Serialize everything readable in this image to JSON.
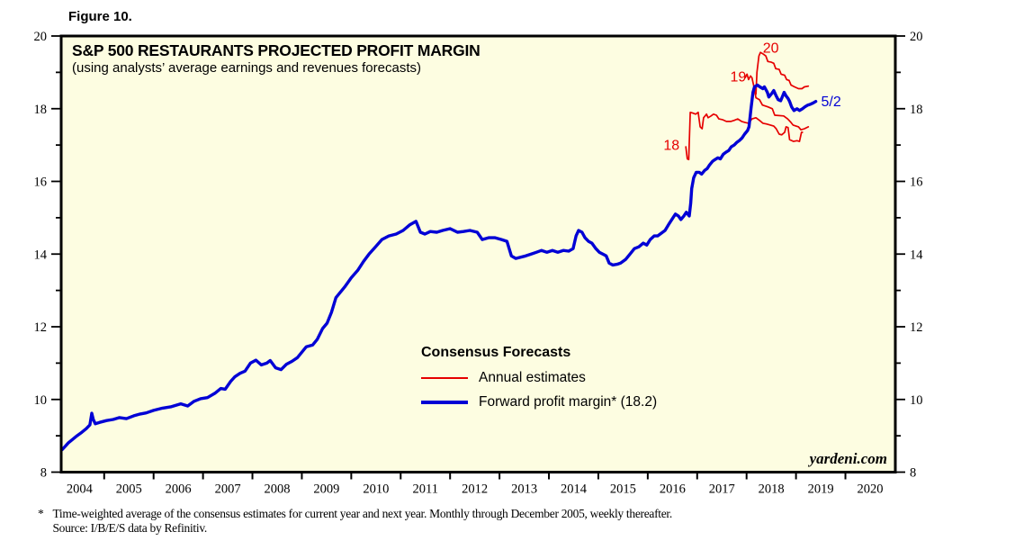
{
  "figure_label": "Figure 10.",
  "chart": {
    "title": "S&P 500 RESTAURANTS PROJECTED PROFIT MARGIN",
    "subtitle": "(using analysts’ average earnings and revenues forecasts)",
    "watermark": "yardeni.com",
    "legend": {
      "title": "Consensus Forecasts",
      "items": [
        {
          "label": "Annual estimates",
          "swatch": "red-line"
        },
        {
          "label": "Forward profit margin* (18.2)",
          "swatch": "blue-line"
        }
      ]
    }
  },
  "footnote": {
    "marker": "*",
    "line1": "Time-weighted average of the consensus estimates for current year and next year. Monthly through December 2005, weekly thereafter.",
    "line2": "Source: I/B/E/S data by Refinitiv."
  },
  "chart_data": {
    "type": "line",
    "title": "S&P 500 RESTAURANTS PROJECTED PROFIT MARGIN",
    "xlabel": "",
    "ylabel": "",
    "xlim": [
      2004.13,
      2021.01
    ],
    "ylim": [
      8,
      20
    ],
    "grid": false,
    "legend_position": "center-inside",
    "plot_bg": "#fdfde1",
    "y_major_ticks": [
      8,
      10,
      12,
      14,
      16,
      18,
      20
    ],
    "y_minor_ticks": [
      9,
      11,
      13,
      15,
      17,
      19
    ],
    "x_boundary_ticks": [
      2005,
      2006,
      2007,
      2008,
      2009,
      2010,
      2011,
      2012,
      2013,
      2014,
      2015,
      2016,
      2017,
      2018,
      2019,
      2020
    ],
    "x_year_labels": [
      "2004",
      "2005",
      "2006",
      "2007",
      "2008",
      "2009",
      "2010",
      "2011",
      "2012",
      "2013",
      "2014",
      "2015",
      "2016",
      "2017",
      "2018",
      "2019",
      "2020"
    ],
    "colors": {
      "forward": "#0000d5",
      "annual": "#e60000",
      "axis": "#000000"
    },
    "series": [
      {
        "name": "annual-estimates-2018",
        "color_key": "annual",
        "width": 1.7,
        "points": [
          [
            2016.77,
            16.95
          ],
          [
            2016.8,
            16.62
          ],
          [
            2016.83,
            16.6
          ],
          [
            2016.86,
            17.9
          ],
          [
            2016.91,
            17.88
          ],
          [
            2016.97,
            17.85
          ],
          [
            2017.02,
            17.9
          ],
          [
            2017.06,
            17.5
          ],
          [
            2017.1,
            17.45
          ],
          [
            2017.13,
            17.75
          ],
          [
            2017.19,
            17.85
          ],
          [
            2017.22,
            17.75
          ],
          [
            2017.28,
            17.8
          ],
          [
            2017.33,
            17.85
          ],
          [
            2017.39,
            17.82
          ],
          [
            2017.44,
            17.72
          ],
          [
            2017.51,
            17.7
          ],
          [
            2017.59,
            17.65
          ],
          [
            2017.68,
            17.65
          ],
          [
            2017.75,
            17.68
          ],
          [
            2017.82,
            17.72
          ],
          [
            2017.9,
            17.65
          ],
          [
            2017.97,
            17.62
          ],
          [
            2018.04,
            17.6
          ],
          [
            2018.11,
            17.72
          ],
          [
            2018.19,
            17.75
          ],
          [
            2018.26,
            17.68
          ],
          [
            2018.33,
            17.6
          ],
          [
            2018.4,
            17.58
          ],
          [
            2018.48,
            17.55
          ],
          [
            2018.55,
            17.52
          ],
          [
            2018.6,
            17.45
          ],
          [
            2018.66,
            17.3
          ],
          [
            2018.71,
            17.28
          ],
          [
            2018.77,
            17.35
          ],
          [
            2018.8,
            17.5
          ],
          [
            2018.84,
            17.48
          ],
          [
            2018.87,
            17.15
          ],
          [
            2018.95,
            17.1
          ],
          [
            2019.02,
            17.12
          ],
          [
            2019.07,
            17.1
          ],
          [
            2019.11,
            17.35
          ],
          [
            2019.13,
            17.35
          ]
        ]
      },
      {
        "name": "annual-estimates-2019",
        "color_key": "annual",
        "width": 1.7,
        "points": [
          [
            2017.97,
            18.85
          ],
          [
            2018.01,
            18.95
          ],
          [
            2018.04,
            18.8
          ],
          [
            2018.08,
            18.9
          ],
          [
            2018.11,
            18.85
          ],
          [
            2018.15,
            18.6
          ],
          [
            2018.19,
            18.3
          ],
          [
            2018.26,
            18.25
          ],
          [
            2018.32,
            18.1
          ],
          [
            2018.43,
            18.05
          ],
          [
            2018.52,
            18.0
          ],
          [
            2018.57,
            17.82
          ],
          [
            2018.75,
            17.8
          ],
          [
            2018.83,
            17.72
          ],
          [
            2018.9,
            17.62
          ],
          [
            2018.94,
            17.55
          ],
          [
            2019.05,
            17.5
          ],
          [
            2019.1,
            17.42
          ],
          [
            2019.17,
            17.45
          ],
          [
            2019.25,
            17.5
          ]
        ]
      },
      {
        "name": "annual-estimates-2020",
        "color_key": "annual",
        "width": 1.7,
        "points": [
          [
            2018.19,
            18.4
          ],
          [
            2018.21,
            19.0
          ],
          [
            2018.25,
            19.45
          ],
          [
            2018.28,
            19.55
          ],
          [
            2018.34,
            19.5
          ],
          [
            2018.39,
            19.45
          ],
          [
            2018.43,
            19.3
          ],
          [
            2018.5,
            19.28
          ],
          [
            2018.55,
            19.25
          ],
          [
            2018.59,
            19.1
          ],
          [
            2018.66,
            19.08
          ],
          [
            2018.7,
            18.95
          ],
          [
            2018.77,
            18.92
          ],
          [
            2018.81,
            18.8
          ],
          [
            2018.86,
            18.78
          ],
          [
            2018.9,
            18.65
          ],
          [
            2018.97,
            18.6
          ],
          [
            2019.05,
            18.55
          ],
          [
            2019.12,
            18.55
          ],
          [
            2019.17,
            18.6
          ],
          [
            2019.25,
            18.62
          ]
        ]
      },
      {
        "name": "forward-profit-margin",
        "color_key": "forward",
        "width": 3.4,
        "points": [
          [
            2004.15,
            8.62
          ],
          [
            2004.22,
            8.72
          ],
          [
            2004.27,
            8.8
          ],
          [
            2004.36,
            8.9
          ],
          [
            2004.45,
            9.0
          ],
          [
            2004.55,
            9.1
          ],
          [
            2004.64,
            9.2
          ],
          [
            2004.71,
            9.3
          ],
          [
            2004.75,
            9.62
          ],
          [
            2004.78,
            9.45
          ],
          [
            2004.82,
            9.33
          ],
          [
            2004.91,
            9.37
          ],
          [
            2005.05,
            9.42
          ],
          [
            2005.18,
            9.45
          ],
          [
            2005.31,
            9.5
          ],
          [
            2005.45,
            9.47
          ],
          [
            2005.6,
            9.55
          ],
          [
            2005.73,
            9.6
          ],
          [
            2005.85,
            9.63
          ],
          [
            2006.0,
            9.7
          ],
          [
            2006.18,
            9.76
          ],
          [
            2006.36,
            9.8
          ],
          [
            2006.55,
            9.88
          ],
          [
            2006.69,
            9.82
          ],
          [
            2006.82,
            9.95
          ],
          [
            2006.95,
            10.02
          ],
          [
            2007.09,
            10.05
          ],
          [
            2007.24,
            10.17
          ],
          [
            2007.36,
            10.3
          ],
          [
            2007.45,
            10.28
          ],
          [
            2007.56,
            10.5
          ],
          [
            2007.64,
            10.62
          ],
          [
            2007.75,
            10.72
          ],
          [
            2007.85,
            10.78
          ],
          [
            2007.96,
            11.0
          ],
          [
            2008.07,
            11.08
          ],
          [
            2008.18,
            10.95
          ],
          [
            2008.29,
            11.0
          ],
          [
            2008.36,
            11.07
          ],
          [
            2008.47,
            10.87
          ],
          [
            2008.58,
            10.82
          ],
          [
            2008.69,
            10.97
          ],
          [
            2008.8,
            11.05
          ],
          [
            2008.91,
            11.15
          ],
          [
            2009.0,
            11.3
          ],
          [
            2009.09,
            11.45
          ],
          [
            2009.22,
            11.5
          ],
          [
            2009.31,
            11.65
          ],
          [
            2009.42,
            11.95
          ],
          [
            2009.51,
            12.1
          ],
          [
            2009.6,
            12.4
          ],
          [
            2009.69,
            12.8
          ],
          [
            2009.78,
            12.95
          ],
          [
            2009.87,
            13.1
          ],
          [
            2010.0,
            13.35
          ],
          [
            2010.13,
            13.55
          ],
          [
            2010.25,
            13.8
          ],
          [
            2010.36,
            14.0
          ],
          [
            2010.49,
            14.2
          ],
          [
            2010.62,
            14.4
          ],
          [
            2010.76,
            14.5
          ],
          [
            2010.91,
            14.55
          ],
          [
            2011.05,
            14.65
          ],
          [
            2011.18,
            14.8
          ],
          [
            2011.31,
            14.9
          ],
          [
            2011.4,
            14.6
          ],
          [
            2011.49,
            14.55
          ],
          [
            2011.6,
            14.62
          ],
          [
            2011.73,
            14.6
          ],
          [
            2011.85,
            14.65
          ],
          [
            2012.0,
            14.7
          ],
          [
            2012.15,
            14.6
          ],
          [
            2012.27,
            14.62
          ],
          [
            2012.4,
            14.65
          ],
          [
            2012.55,
            14.6
          ],
          [
            2012.65,
            14.4
          ],
          [
            2012.78,
            14.45
          ],
          [
            2012.91,
            14.45
          ],
          [
            2013.04,
            14.4
          ],
          [
            2013.15,
            14.35
          ],
          [
            2013.24,
            13.95
          ],
          [
            2013.33,
            13.88
          ],
          [
            2013.53,
            13.95
          ],
          [
            2013.64,
            14.0
          ],
          [
            2013.75,
            14.05
          ],
          [
            2013.85,
            14.1
          ],
          [
            2013.96,
            14.05
          ],
          [
            2014.07,
            14.1
          ],
          [
            2014.18,
            14.05
          ],
          [
            2014.29,
            14.1
          ],
          [
            2014.4,
            14.08
          ],
          [
            2014.49,
            14.15
          ],
          [
            2014.55,
            14.5
          ],
          [
            2014.6,
            14.65
          ],
          [
            2014.67,
            14.6
          ],
          [
            2014.73,
            14.45
          ],
          [
            2014.8,
            14.35
          ],
          [
            2014.87,
            14.3
          ],
          [
            2014.95,
            14.15
          ],
          [
            2015.02,
            14.05
          ],
          [
            2015.09,
            14.0
          ],
          [
            2015.16,
            13.95
          ],
          [
            2015.22,
            13.75
          ],
          [
            2015.29,
            13.7
          ],
          [
            2015.38,
            13.72
          ],
          [
            2015.45,
            13.75
          ],
          [
            2015.55,
            13.85
          ],
          [
            2015.64,
            14.0
          ],
          [
            2015.73,
            14.15
          ],
          [
            2015.82,
            14.2
          ],
          [
            2015.91,
            14.3
          ],
          [
            2015.98,
            14.25
          ],
          [
            2016.05,
            14.4
          ],
          [
            2016.13,
            14.5
          ],
          [
            2016.2,
            14.5
          ],
          [
            2016.27,
            14.57
          ],
          [
            2016.35,
            14.65
          ],
          [
            2016.44,
            14.85
          ],
          [
            2016.51,
            15.0
          ],
          [
            2016.56,
            15.1
          ],
          [
            2016.62,
            15.05
          ],
          [
            2016.67,
            14.95
          ],
          [
            2016.73,
            15.05
          ],
          [
            2016.78,
            15.15
          ],
          [
            2016.84,
            15.05
          ],
          [
            2016.87,
            15.4
          ],
          [
            2016.89,
            15.8
          ],
          [
            2016.93,
            16.1
          ],
          [
            2016.98,
            16.25
          ],
          [
            2017.04,
            16.25
          ],
          [
            2017.09,
            16.2
          ],
          [
            2017.15,
            16.3
          ],
          [
            2017.2,
            16.35
          ],
          [
            2017.25,
            16.45
          ],
          [
            2017.31,
            16.55
          ],
          [
            2017.36,
            16.6
          ],
          [
            2017.42,
            16.65
          ],
          [
            2017.47,
            16.62
          ],
          [
            2017.53,
            16.75
          ],
          [
            2017.58,
            16.8
          ],
          [
            2017.64,
            16.85
          ],
          [
            2017.69,
            16.95
          ],
          [
            2017.75,
            17.0
          ],
          [
            2017.8,
            17.07
          ],
          [
            2017.85,
            17.12
          ],
          [
            2017.91,
            17.2
          ],
          [
            2017.96,
            17.3
          ],
          [
            2018.02,
            17.4
          ],
          [
            2018.05,
            17.5
          ],
          [
            2018.09,
            18.0
          ],
          [
            2018.13,
            18.45
          ],
          [
            2018.16,
            18.6
          ],
          [
            2018.22,
            18.65
          ],
          [
            2018.27,
            18.6
          ],
          [
            2018.33,
            18.55
          ],
          [
            2018.36,
            18.6
          ],
          [
            2018.42,
            18.45
          ],
          [
            2018.45,
            18.32
          ],
          [
            2018.51,
            18.42
          ],
          [
            2018.55,
            18.5
          ],
          [
            2018.6,
            18.35
          ],
          [
            2018.64,
            18.25
          ],
          [
            2018.69,
            18.22
          ],
          [
            2018.73,
            18.35
          ],
          [
            2018.76,
            18.45
          ],
          [
            2018.8,
            18.35
          ],
          [
            2018.84,
            18.28
          ],
          [
            2018.87,
            18.2
          ],
          [
            2018.91,
            18.05
          ],
          [
            2018.96,
            17.95
          ],
          [
            2019.02,
            18.0
          ],
          [
            2019.07,
            17.95
          ],
          [
            2019.13,
            18.0
          ],
          [
            2019.18,
            18.05
          ],
          [
            2019.24,
            18.1
          ],
          [
            2019.29,
            18.12
          ],
          [
            2019.35,
            18.16
          ],
          [
            2019.4,
            18.2
          ]
        ]
      }
    ],
    "annotations": [
      {
        "text": "18",
        "x": 2016.48,
        "y": 17.0,
        "color_key": "annual"
      },
      {
        "text": "19",
        "x": 2017.83,
        "y": 18.88,
        "color_key": "annual"
      },
      {
        "text": "20",
        "x": 2018.49,
        "y": 19.68,
        "color_key": "annual"
      },
      {
        "text": "5/2",
        "x": 2019.71,
        "y": 18.2,
        "color_key": "forward"
      }
    ]
  }
}
